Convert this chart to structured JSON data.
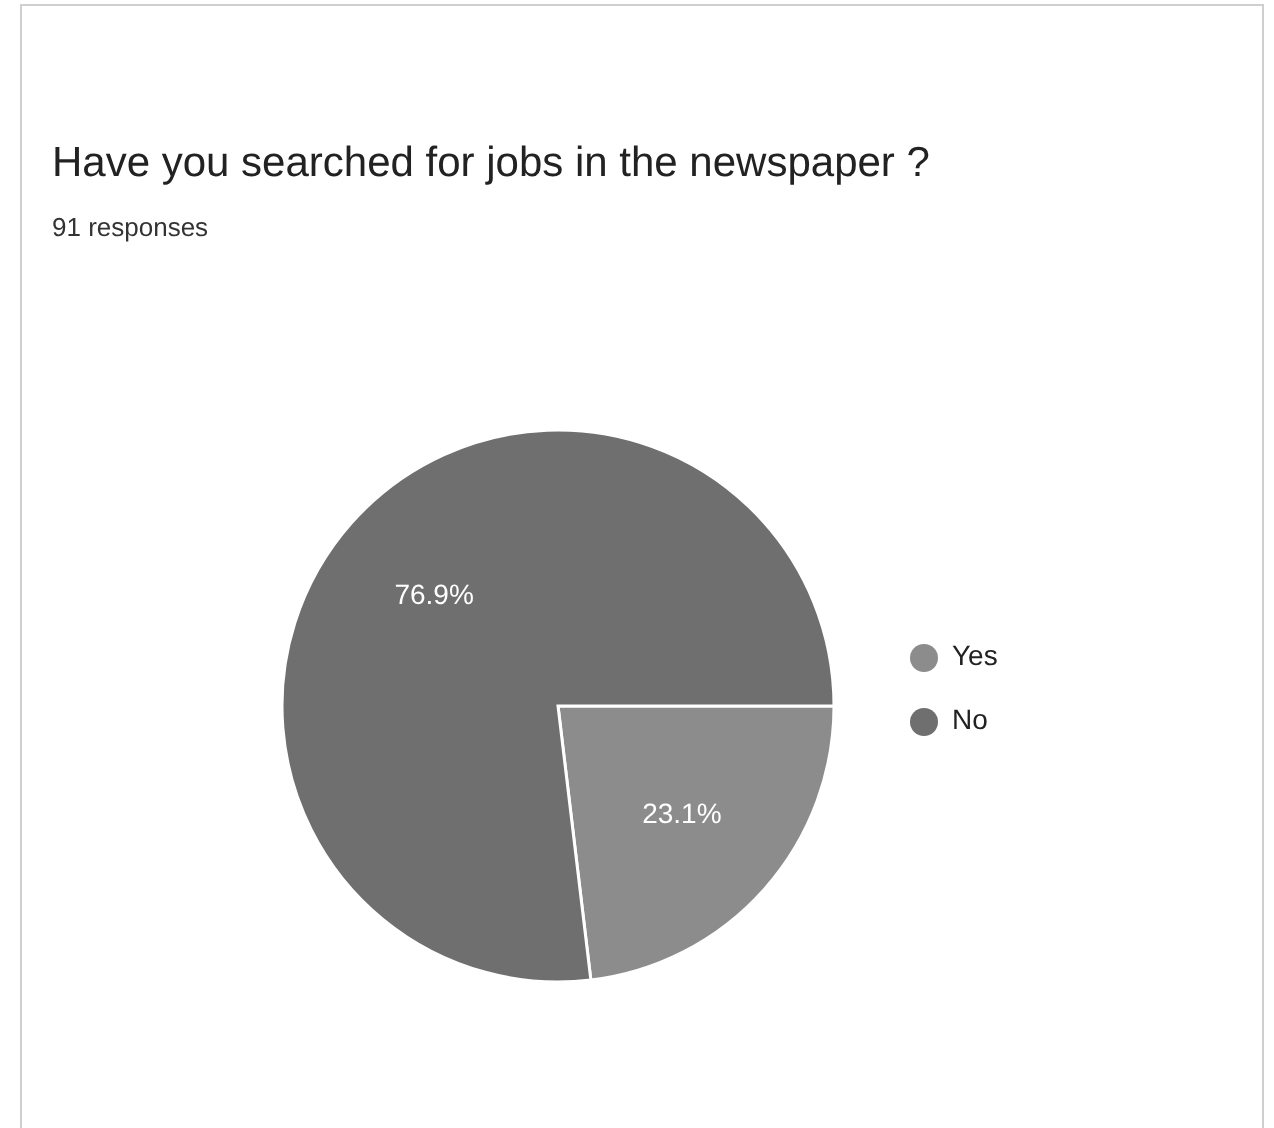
{
  "chart_data": {
    "type": "pie",
    "title": "Have you searched for jobs in the newspaper ?",
    "subtitle": "91 responses",
    "categories": [
      "Yes",
      "No"
    ],
    "values": [
      23.1,
      76.9
    ],
    "colors": [
      "#8c8c8c",
      "#6f6f6f"
    ],
    "value_labels": [
      "23.1%",
      "76.9%"
    ],
    "legend": "right"
  }
}
